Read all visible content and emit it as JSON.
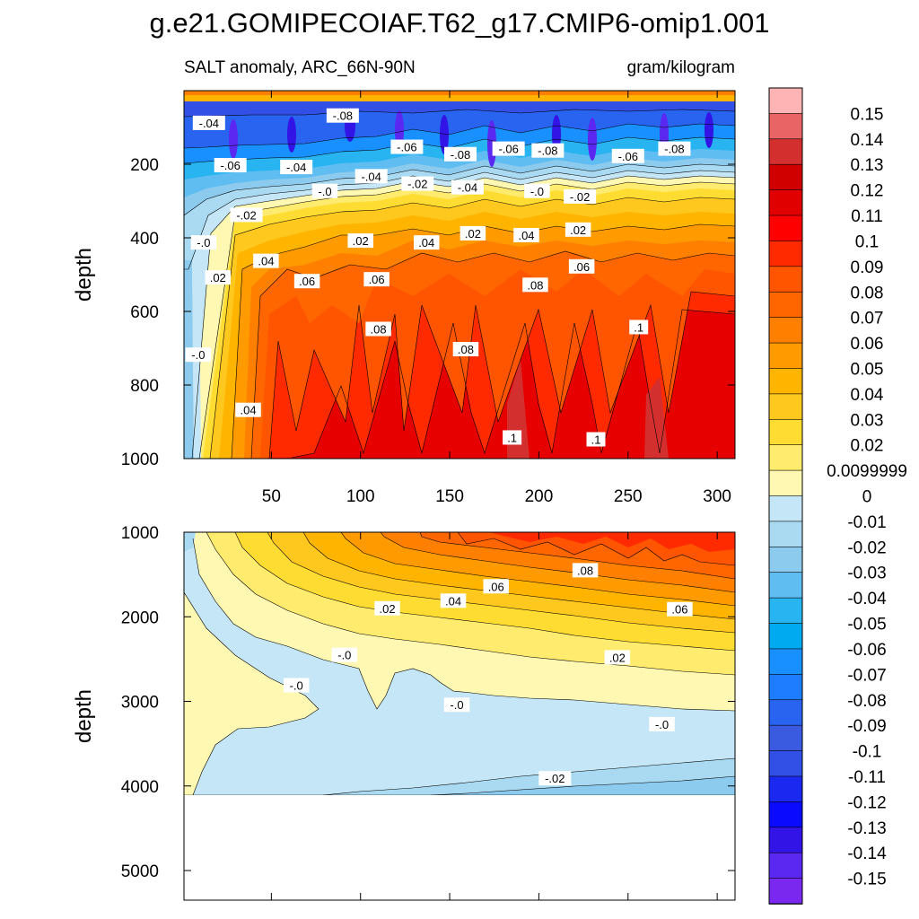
{
  "title": "g.e21.GOMIPECOIAF.T62_g17.CMIP6-omip1.001",
  "colors": {
    "background": "#ffffff",
    "missing": "#ffffff",
    "contour_line": "#000000"
  },
  "chart_data": [
    {
      "type": "heatmap",
      "name": "upper",
      "left_label": "SALT anomaly, ARC_66N-90N",
      "right_label": "gram/kilogram",
      "xlabel": "",
      "ylabel": "depth",
      "xlim": [
        1,
        310
      ],
      "ylim": [
        1000,
        0
      ],
      "xticks": [
        50,
        100,
        150,
        200,
        250,
        300
      ],
      "xtick_labels": [
        "50",
        "100",
        "150",
        "200",
        "250",
        "300"
      ],
      "yticks": [
        200,
        400,
        600,
        800,
        1000
      ],
      "ytick_labels": [
        "200",
        "400",
        "600",
        "800",
        "1000"
      ],
      "contour_labels": [
        {
          "x": 15,
          "y": 90,
          "text": "-.04"
        },
        {
          "x": 27,
          "y": 205,
          "text": "-.06"
        },
        {
          "x": 90,
          "y": 70,
          "text": "-.08"
        },
        {
          "x": 126,
          "y": 155,
          "text": "-.06"
        },
        {
          "x": 64,
          "y": 210,
          "text": "-.04"
        },
        {
          "x": 156,
          "y": 175,
          "text": "-.08"
        },
        {
          "x": 183,
          "y": 160,
          "text": "-.06"
        },
        {
          "x": 205,
          "y": 165,
          "text": "-.08"
        },
        {
          "x": 250,
          "y": 180,
          "text": "-.06"
        },
        {
          "x": 276,
          "y": 160,
          "text": "-.08"
        },
        {
          "x": 106,
          "y": 235,
          "text": "-.04"
        },
        {
          "x": 132,
          "y": 255,
          "text": "-.02"
        },
        {
          "x": 160,
          "y": 265,
          "text": "-.04"
        },
        {
          "x": 80,
          "y": 275,
          "text": "-.0"
        },
        {
          "x": 199,
          "y": 275,
          "text": "-.0"
        },
        {
          "x": 223,
          "y": 290,
          "text": "-.02"
        },
        {
          "x": 36,
          "y": 340,
          "text": "-.02"
        },
        {
          "x": 12,
          "y": 415,
          "text": "-.0"
        },
        {
          "x": 100,
          "y": 410,
          "text": ".02"
        },
        {
          "x": 137,
          "y": 415,
          "text": ".04"
        },
        {
          "x": 163,
          "y": 390,
          "text": ".02"
        },
        {
          "x": 193,
          "y": 395,
          "text": ".04"
        },
        {
          "x": 222,
          "y": 380,
          "text": ".02"
        },
        {
          "x": 47,
          "y": 465,
          "text": ".04"
        },
        {
          "x": 20,
          "y": 510,
          "text": ".02"
        },
        {
          "x": 70,
          "y": 520,
          "text": ".06"
        },
        {
          "x": 109,
          "y": 515,
          "text": ".06"
        },
        {
          "x": 224,
          "y": 480,
          "text": ".06"
        },
        {
          "x": 198,
          "y": 530,
          "text": ".08"
        },
        {
          "x": 110,
          "y": 650,
          "text": ".08"
        },
        {
          "x": 159,
          "y": 705,
          "text": ".08"
        },
        {
          "x": 256,
          "y": 645,
          "text": ".1"
        },
        {
          "x": 9,
          "y": 720,
          "text": "-.0"
        },
        {
          "x": 37,
          "y": 870,
          "text": ".04"
        },
        {
          "x": 185,
          "y": 945,
          "text": ".1"
        },
        {
          "x": 232,
          "y": 950,
          "text": ".1"
        }
      ]
    },
    {
      "type": "heatmap",
      "name": "lower",
      "xlabel": "",
      "ylabel": "depth",
      "xlim": [
        1,
        310
      ],
      "ylim": [
        5350,
        1000
      ],
      "data_bottom_depth": 4100,
      "xticks": [
        50,
        100,
        150,
        200,
        250,
        300
      ],
      "yticks": [
        1000,
        2000,
        3000,
        4000,
        5000
      ],
      "ytick_labels": [
        "1000",
        "2000",
        "3000",
        "4000",
        "5000"
      ],
      "contour_labels": [
        {
          "x": 115,
          "y": 1910,
          "text": ".02"
        },
        {
          "x": 152,
          "y": 1820,
          "text": ".04"
        },
        {
          "x": 176,
          "y": 1650,
          "text": ".06"
        },
        {
          "x": 226,
          "y": 1460,
          "text": ".08"
        },
        {
          "x": 279,
          "y": 1920,
          "text": ".06"
        },
        {
          "x": 244,
          "y": 2490,
          "text": ".02"
        },
        {
          "x": 91,
          "y": 2460,
          "text": "-.0"
        },
        {
          "x": 64,
          "y": 2820,
          "text": "-.0"
        },
        {
          "x": 154,
          "y": 3050,
          "text": "-.0"
        },
        {
          "x": 269,
          "y": 3280,
          "text": "-.0"
        },
        {
          "x": 209,
          "y": 3920,
          "text": "-.02"
        }
      ]
    }
  ],
  "colorbar": {
    "labels": [
      "0.15",
      "0.14",
      "0.13",
      "0.12",
      "0.11",
      "0.1",
      "0.09",
      "0.08",
      "0.07",
      "0.06",
      "0.05",
      "0.04",
      "0.03",
      "0.02",
      "0.0099999",
      "0",
      "-0.01",
      "-0.02",
      "-0.03",
      "-0.04",
      "-0.05",
      "-0.06",
      "-0.07",
      "-0.08",
      "-0.09",
      "-0.1",
      "-0.11",
      "-0.12",
      "-0.13",
      "-0.14",
      "-0.15"
    ],
    "colors": [
      "#feb4b4",
      "#e96464",
      "#d42f2f",
      "#d00000",
      "#e00000",
      "#ff0000",
      "#ff2a00",
      "#ff5500",
      "#ff6600",
      "#ff7f00",
      "#ff9a00",
      "#ffb400",
      "#ffc81e",
      "#ffdc32",
      "#ffeb6e",
      "#fff8b3",
      "#c4e6f6",
      "#a9daf2",
      "#8ccaee",
      "#5fbdf2",
      "#28b4f0",
      "#00aaf0",
      "#1890ff",
      "#1e7dff",
      "#2864f0",
      "#3a5ae0",
      "#3250e6",
      "#1a28f0",
      "#0a0aff",
      "#3214e6",
      "#5a28f0",
      "#7a28f0"
    ]
  }
}
